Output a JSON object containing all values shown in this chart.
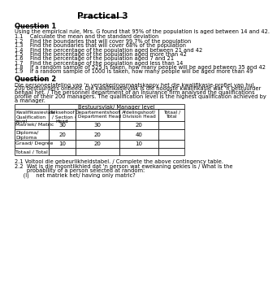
{
  "title": "Practical 3",
  "q1_header": "Question 1",
  "q1_intro": "Using the empirical rule, Mrs. G found that 95% of the population is aged between 14 and 42.",
  "q1_items": [
    "1.1    Calculate the mean and the standard deviation",
    "1.2    Find the boundaries that will cover 99.7% of the population",
    "1.3    Find the boundaries that will cover 68% of the population",
    "1.4    Find the percentage of the population aged between 21 and 42",
    "1.5    Find the percentage of the population aged more than 42",
    "1.6    Find the percentage of the population aged 7 and 21",
    "1.7    Find the percentage of the population aged less than 14",
    "1.8    If a random sample of 525 is taken, how many people will be aged between 35 and 42",
    "1.9    If a random sample of 1000 is taken, how many people will be aged more than 49"
  ],
  "q2_header": "Question 2",
  "q2_intro_lines": [
    "Die personeelafeling van 'n versekeringsmaatskappy het die kwalifikasie-profiel van hul",
    "200 bestuurders ontleed. Die kwalifikasievlak is die hoogste kwalifikasie wat 'n bestuurder",
    "behaal het. / The personnel department of an Insurance firm analysed the qualifications",
    "profile of their 200 managers. The qualification level is the highest qualification achieved by",
    "a manager."
  ],
  "table_col_header": "Bestuursvlak/ Manager level",
  "table_row_header": "Kwalifikasievlak/\nQualification\nlevel",
  "col_labels": [
    "Seksehoof\n/ Section\nHead",
    "Departementshoof\n/ Department Head",
    "Afdelingshoof/\nDivision Head",
    "Totaal /\nTotal"
  ],
  "row1_label": "Matriek/ Matric",
  "row1_vals": [
    "30",
    "30",
    "20",
    ""
  ],
  "row2_label": "Diploma/\nDiploma",
  "row2_vals": [
    "20",
    "20",
    "40",
    ""
  ],
  "row3_label": "Graad/ Degree",
  "row3_vals": [
    "10",
    "20",
    "10",
    ""
  ],
  "row4_label": "Totaal / Total",
  "row4_vals": [
    "",
    "",
    "",
    ""
  ],
  "note1": "2.1 Voltooi die gebeurlikheidstabel. / Complete the above contingency table.",
  "note2": "2.2  Wat is die moontlikhied dat 'n person wat ewekaning gekies is / What is the",
  "note2b": "       probability of a person selected at random:",
  "note3": "     (i)    net matriek het/ having only matric?"
}
